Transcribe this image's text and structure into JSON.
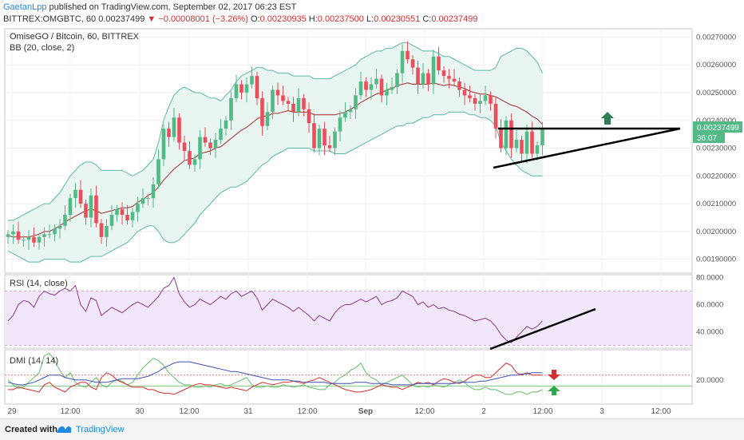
{
  "header": {
    "author": "GaetanLpp",
    "published_text": " published on TradingView.com, September 02, 2017 06:23 EST",
    "symbol": "BITTREX:OMGBTC, 60",
    "last": "0.00237499",
    "change": "−0.00008001 (−3.26%)",
    "open_label": "O:",
    "open": "0.00230935",
    "high_label": "H:",
    "high": "0.00237500",
    "low_label": "L:",
    "low": "0.00230551",
    "close_label": "C:",
    "close": "0.00237499"
  },
  "footer": {
    "created_with": "Created with",
    "brand": "TradingView"
  },
  "colors": {
    "up": "#53b987",
    "down": "#eb4d5c",
    "bb_fill": "#e8f5f1",
    "bb_band": "#5cb8a5",
    "bb_basis": "#a52a2a",
    "rsi_line": "#8e3a8e",
    "rsi_band": "#f1e6fa",
    "plus_di": "#2e7d32",
    "minus_di": "#d32f2f",
    "adx": "#3f51b5",
    "trendline": "#000000",
    "green_arrow": "#2e7d55",
    "red_arrow": "#d32f2f"
  },
  "chart_data": [
    {
      "type": "candlestick",
      "title": "OmiseGO / Bitcoin, 60, BITTREX",
      "indicator_label": "BB (20, close, 2)",
      "y_ticks": [
        "0.00270000",
        "0.00260000",
        "0.00250000",
        "0.00240000",
        "0.00230000",
        "0.00220000",
        "0.00210000",
        "0.00200000",
        "0.00190000"
      ],
      "ylim": [
        0.00185,
        0.00273
      ],
      "x_ticks": [
        "29",
        "12:00",
        "30",
        "12:00",
        "31",
        "12:00",
        "Sep",
        "12:00",
        "2",
        "12:00",
        "3",
        "12:00"
      ],
      "last_price_label": "0.00237499",
      "countdown_label": "36:07",
      "closes": [
        0.00199,
        0.002,
        0.00197,
        0.00197,
        0.00198,
        0.00196,
        0.00198,
        0.00199,
        0.00199,
        0.00201,
        0.00202,
        0.00206,
        0.00212,
        0.00215,
        0.0021,
        0.00205,
        0.00213,
        0.00203,
        0.00198,
        0.00202,
        0.00206,
        0.00208,
        0.00206,
        0.00204,
        0.00207,
        0.0021,
        0.00212,
        0.00212,
        0.00217,
        0.00226,
        0.00237,
        0.00234,
        0.00241,
        0.00232,
        0.00229,
        0.00224,
        0.00226,
        0.00234,
        0.00232,
        0.0023,
        0.00233,
        0.00237,
        0.0024,
        0.00248,
        0.00253,
        0.0025,
        0.00253,
        0.00256,
        0.00248,
        0.00238,
        0.00243,
        0.00251,
        0.00249,
        0.00247,
        0.00246,
        0.00243,
        0.00248,
        0.00244,
        0.00239,
        0.0023,
        0.00237,
        0.00231,
        0.0023,
        0.00236,
        0.00241,
        0.00243,
        0.00244,
        0.00249,
        0.00254,
        0.00251,
        0.00253,
        0.00255,
        0.00249,
        0.00251,
        0.00252,
        0.00257,
        0.00265,
        0.00262,
        0.00259,
        0.00253,
        0.00257,
        0.00253,
        0.00263,
        0.00258,
        0.00256,
        0.00255,
        0.00254,
        0.00251,
        0.00249,
        0.00248,
        0.00246,
        0.00247,
        0.00249,
        0.00246,
        0.00237,
        0.0023,
        0.0024,
        0.0023,
        0.00233,
        0.00228,
        0.00236,
        0.00228,
        0.00231,
        0.00237
      ],
      "bb_upper": [
        0.00204,
        0.00204,
        0.00205,
        0.00206,
        0.00207,
        0.00208,
        0.00209,
        0.0021,
        0.0021,
        0.00212,
        0.00214,
        0.00217,
        0.0022,
        0.00222,
        0.00224,
        0.00225,
        0.00225,
        0.00224,
        0.00222,
        0.00222,
        0.00222,
        0.00222,
        0.00222,
        0.00221,
        0.0022,
        0.00221,
        0.00222,
        0.00224,
        0.00226,
        0.00232,
        0.0024,
        0.00245,
        0.00249,
        0.00251,
        0.00252,
        0.00251,
        0.0025,
        0.0025,
        0.00249,
        0.00248,
        0.00248,
        0.00247,
        0.00249,
        0.00251,
        0.00254,
        0.00256,
        0.00257,
        0.00258,
        0.00259,
        0.00259,
        0.00258,
        0.00258,
        0.00257,
        0.00257,
        0.00257,
        0.00256,
        0.00256,
        0.00256,
        0.00256,
        0.00255,
        0.00255,
        0.00255,
        0.00255,
        0.00256,
        0.00257,
        0.00258,
        0.00259,
        0.0026,
        0.00262,
        0.00263,
        0.00264,
        0.00265,
        0.00265,
        0.00266,
        0.00266,
        0.00267,
        0.00268,
        0.00268,
        0.00267,
        0.00266,
        0.00265,
        0.00265,
        0.00265,
        0.00264,
        0.00263,
        0.00263,
        0.00262,
        0.00261,
        0.0026,
        0.00259,
        0.00258,
        0.00258,
        0.00258,
        0.00258,
        0.00259,
        0.00263,
        0.00264,
        0.00265,
        0.00266,
        0.00266,
        0.00265,
        0.00263,
        0.00261,
        0.00257
      ],
      "bb_lower": [
        0.00193,
        0.00192,
        0.00191,
        0.0019,
        0.00189,
        0.00189,
        0.00189,
        0.0019,
        0.0019,
        0.0019,
        0.0019,
        0.0019,
        0.00189,
        0.00189,
        0.00189,
        0.0019,
        0.00191,
        0.00191,
        0.00191,
        0.00192,
        0.00193,
        0.00194,
        0.00195,
        0.00196,
        0.00198,
        0.002,
        0.00201,
        0.00202,
        0.00202,
        0.002,
        0.00197,
        0.00196,
        0.00196,
        0.00197,
        0.00199,
        0.00201,
        0.00203,
        0.00206,
        0.00208,
        0.0021,
        0.00212,
        0.00214,
        0.00215,
        0.00216,
        0.00216,
        0.00217,
        0.00218,
        0.0022,
        0.00222,
        0.00224,
        0.00225,
        0.00227,
        0.00228,
        0.00229,
        0.0023,
        0.0023,
        0.0023,
        0.0023,
        0.0023,
        0.00229,
        0.00229,
        0.00229,
        0.00229,
        0.00228,
        0.00228,
        0.00228,
        0.00229,
        0.0023,
        0.00231,
        0.00232,
        0.00233,
        0.00234,
        0.00235,
        0.00236,
        0.00237,
        0.00238,
        0.00238,
        0.00239,
        0.00239,
        0.0024,
        0.00241,
        0.00241,
        0.00242,
        0.00242,
        0.00242,
        0.00243,
        0.00243,
        0.00243,
        0.00243,
        0.00242,
        0.00242,
        0.00241,
        0.00241,
        0.0024,
        0.00238,
        0.00232,
        0.00229,
        0.00226,
        0.00224,
        0.00222,
        0.00221,
        0.0022,
        0.0022,
        0.0022
      ]
    },
    {
      "type": "line",
      "title": "RSI (14, close)",
      "y_ticks": [
        "80.0000",
        "60.0000",
        "40.0000"
      ],
      "ylim": [
        28,
        82
      ],
      "band": [
        30,
        70
      ],
      "values": [
        48,
        52,
        60,
        63,
        62,
        58,
        66,
        70,
        68,
        67,
        70,
        72,
        70,
        74,
        60,
        55,
        65,
        63,
        52,
        55,
        58,
        56,
        54,
        57,
        60,
        62,
        60,
        58,
        62,
        66,
        72,
        74,
        80,
        68,
        62,
        58,
        60,
        64,
        62,
        60,
        63,
        66,
        64,
        68,
        70,
        66,
        68,
        70,
        65,
        56,
        60,
        64,
        62,
        60,
        58,
        55,
        58,
        55,
        52,
        48,
        52,
        50,
        48,
        54,
        58,
        60,
        60,
        62,
        64,
        62,
        64,
        66,
        60,
        62,
        63,
        65,
        70,
        68,
        66,
        60,
        62,
        58,
        60,
        57,
        58,
        56,
        55,
        53,
        52,
        50,
        48,
        49,
        50,
        48,
        44,
        38,
        34,
        32,
        36,
        40,
        44,
        42,
        44,
        48
      ]
    }
  ],
  "dmi": {
    "title": "DMI (14, 14)",
    "y_tick": "20.0000",
    "ylim": [
      0,
      45
    ],
    "hlines": [
      24,
      15
    ],
    "plus_di": [
      20,
      16,
      13,
      14,
      18,
      22,
      26,
      40,
      42,
      36,
      28,
      22,
      26,
      18,
      15,
      14,
      18,
      22,
      16,
      14,
      18,
      20,
      19,
      16,
      18,
      24,
      30,
      34,
      38,
      36,
      32,
      26,
      22,
      18,
      16,
      16,
      14,
      14,
      15,
      14,
      16,
      17,
      15,
      16,
      18,
      20,
      22,
      16,
      14,
      14,
      15,
      14,
      14,
      16,
      15,
      14,
      15,
      16,
      14,
      13,
      12,
      12,
      16,
      18,
      22,
      24,
      28,
      30,
      34,
      26,
      22,
      20,
      16,
      18,
      20,
      22,
      24,
      20,
      16,
      14,
      15,
      14,
      16,
      15,
      14,
      16,
      18,
      20,
      18,
      14,
      12,
      12,
      14,
      12,
      12,
      10,
      8,
      8,
      10,
      10,
      8,
      10,
      10,
      12
    ],
    "minus_di": [
      12,
      12,
      14,
      13,
      12,
      11,
      10,
      16,
      18,
      14,
      12,
      10,
      14,
      16,
      18,
      18,
      14,
      12,
      22,
      26,
      24,
      20,
      18,
      16,
      14,
      14,
      14,
      12,
      12,
      10,
      9,
      9,
      8,
      10,
      12,
      14,
      16,
      17,
      16,
      16,
      15,
      14,
      13,
      14,
      13,
      12,
      11,
      14,
      16,
      18,
      17,
      16,
      17,
      18,
      18,
      19,
      18,
      17,
      19,
      20,
      22,
      20,
      18,
      16,
      14,
      12,
      11,
      10,
      10,
      11,
      12,
      14,
      16,
      15,
      14,
      14,
      12,
      14,
      16,
      18,
      17,
      18,
      16,
      19,
      21,
      20,
      18,
      17,
      19,
      22,
      24,
      24,
      22,
      22,
      26,
      30,
      34,
      32,
      26,
      24,
      26,
      24,
      24,
      24
    ],
    "adx": [
      18,
      17,
      16,
      16,
      17,
      18,
      20,
      22,
      24,
      24,
      24,
      22,
      21,
      20,
      20,
      20,
      19,
      18,
      18,
      18,
      19,
      20,
      21,
      21,
      21,
      21,
      22,
      23,
      25,
      27,
      30,
      32,
      34,
      35,
      35,
      35,
      34,
      33,
      32,
      31,
      30,
      29,
      28,
      27,
      27,
      26,
      25,
      24,
      23,
      22,
      21,
      20,
      20,
      20,
      20,
      19,
      19,
      18,
      18,
      18,
      18,
      18,
      17,
      17,
      17,
      17,
      17,
      18,
      18,
      18,
      17,
      17,
      17,
      17,
      16,
      16,
      16,
      16,
      16,
      17,
      17,
      17,
      17,
      17,
      17,
      17,
      17,
      18,
      18,
      18,
      18,
      19,
      19,
      20,
      21,
      22,
      23,
      24,
      24,
      25,
      25,
      26,
      26,
      26
    ]
  }
}
